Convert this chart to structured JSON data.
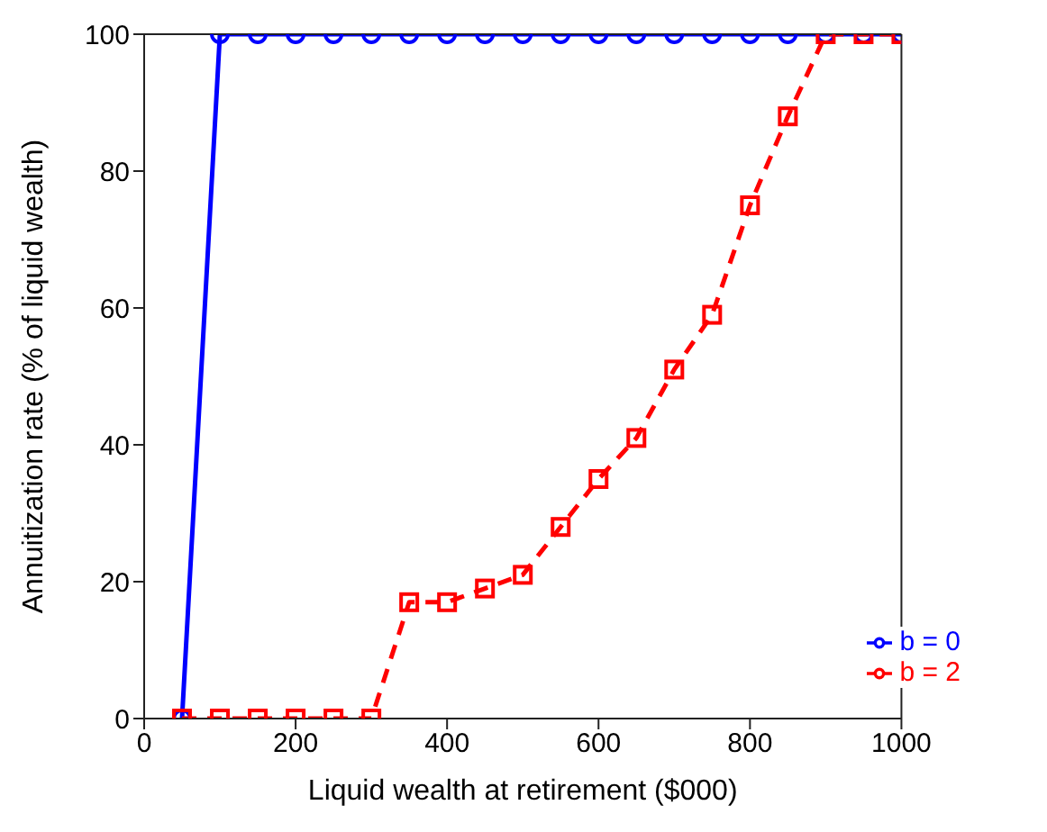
{
  "chart_data": {
    "type": "line",
    "xlabel": "Liquid wealth at retirement ($000)",
    "ylabel": "Annuitization rate (% of liquid wealth)",
    "x": [
      50,
      100,
      150,
      200,
      250,
      300,
      350,
      400,
      450,
      500,
      550,
      600,
      650,
      700,
      750,
      800,
      850,
      900,
      950,
      1000
    ],
    "series": [
      {
        "name": "b = 0",
        "color": "#0000ff",
        "marker": "circle",
        "line_style": "solid",
        "values": [
          0,
          100,
          100,
          100,
          100,
          100,
          100,
          100,
          100,
          100,
          100,
          100,
          100,
          100,
          100,
          100,
          100,
          100,
          100,
          100
        ]
      },
      {
        "name": "b = 2",
        "color": "#ff0000",
        "marker": "square",
        "line_style": "dashed",
        "values": [
          0,
          0,
          0,
          0,
          0,
          0,
          17,
          17,
          19,
          21,
          28,
          35,
          41,
          51,
          59,
          75,
          88,
          100,
          100,
          100
        ]
      }
    ],
    "xlim": [
      0,
      1000
    ],
    "xticks": [
      0,
      200,
      400,
      600,
      800,
      1000
    ],
    "ylim": [
      0,
      100
    ],
    "yticks": [
      0,
      20,
      40,
      60,
      80,
      100
    ],
    "grid": false,
    "legend": "bottom right"
  }
}
